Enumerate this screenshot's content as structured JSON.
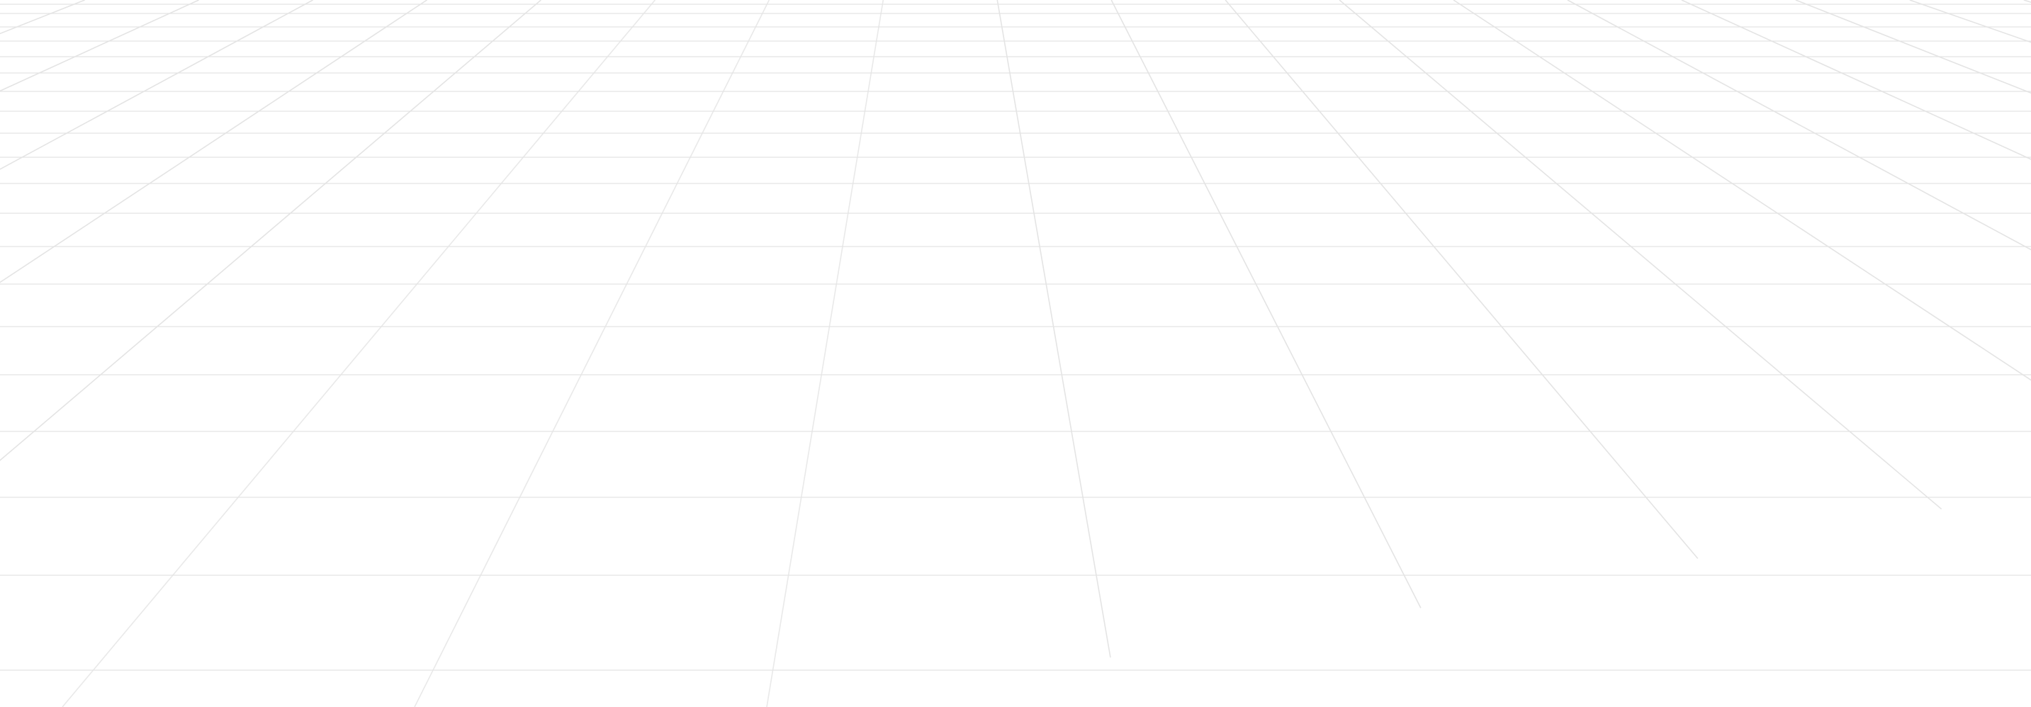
{
  "colors": {
    "background": "#ffffff",
    "grid_line": "#e4e4e4"
  },
  "grid": {
    "horizontal_rows": [
      6,
      19,
      38,
      58,
      80,
      103,
      129,
      157,
      188,
      222,
      259,
      301,
      348,
      401,
      461,
      529,
      609,
      702,
      812,
      946
    ],
    "converging_base_offsets": [
      -12,
      -11,
      -10,
      -9,
      -8,
      -7,
      -6,
      -5,
      -4,
      -3,
      -2,
      -1,
      0,
      1,
      2,
      3,
      4,
      5,
      6,
      7,
      8,
      9,
      10,
      11,
      12
    ]
  }
}
